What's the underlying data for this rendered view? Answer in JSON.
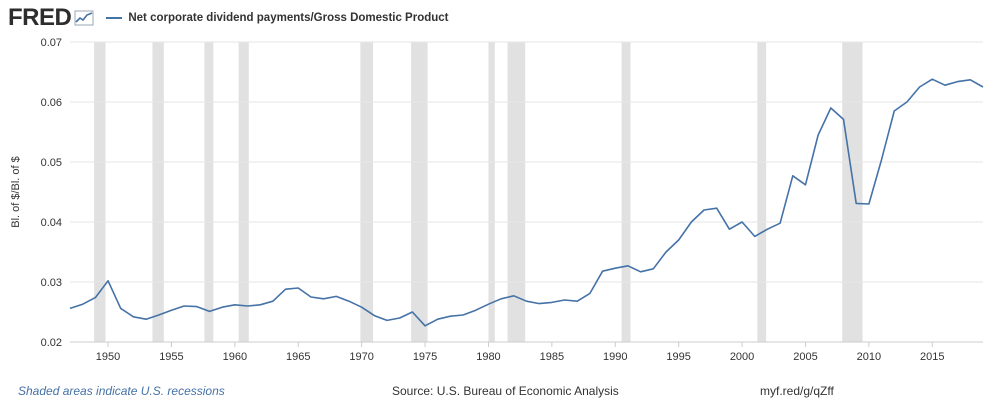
{
  "header": {
    "logo_text": "FRED",
    "logo_icon": "fred-chart-icon",
    "legend_series": "Net corporate dividend payments/Gross Domestic Product"
  },
  "footer": {
    "recessions_note": "Shaded areas indicate U.S. recessions",
    "source": "Source: U.S. Bureau of Economic Analysis",
    "short_url": "myf.red/g/qZff"
  },
  "colors": {
    "series": "#4572a7",
    "recession": "#e1e1e1",
    "grid": "#e6e6e6",
    "plot_bg": "#ffffff"
  },
  "chart_data": {
    "type": "line",
    "ylabel": "Bl. of $/Bl. of $",
    "xlabel": "",
    "ylim": [
      0.02,
      0.07
    ],
    "xlim": [
      1947,
      2019
    ],
    "y_ticks": [
      "0.02",
      "0.03",
      "0.04",
      "0.05",
      "0.06",
      "0.07"
    ],
    "x_ticks": [
      "1950",
      "1955",
      "1960",
      "1965",
      "1970",
      "1975",
      "1980",
      "1985",
      "1990",
      "1995",
      "2000",
      "2005",
      "2010",
      "2015"
    ],
    "grid": true,
    "recessions": [
      [
        1948.9,
        1949.8
      ],
      [
        1953.5,
        1954.4
      ],
      [
        1957.6,
        1958.3
      ],
      [
        1960.3,
        1961.1
      ],
      [
        1969.9,
        1970.9
      ],
      [
        1973.9,
        1975.2
      ],
      [
        1980.0,
        1980.5
      ],
      [
        1981.5,
        1982.9
      ],
      [
        1990.5,
        1991.2
      ],
      [
        2001.2,
        2001.9
      ],
      [
        2007.9,
        2009.5
      ]
    ],
    "series": [
      {
        "name": "Net corporate dividend payments/Gross Domestic Product",
        "x": [
          1947,
          1948,
          1949,
          1950,
          1951,
          1952,
          1953,
          1954,
          1955,
          1956,
          1957,
          1958,
          1959,
          1960,
          1961,
          1962,
          1963,
          1964,
          1965,
          1966,
          1967,
          1968,
          1969,
          1970,
          1971,
          1972,
          1973,
          1974,
          1975,
          1976,
          1977,
          1978,
          1979,
          1980,
          1981,
          1982,
          1983,
          1984,
          1985,
          1986,
          1987,
          1988,
          1989,
          1990,
          1991,
          1992,
          1993,
          1994,
          1995,
          1996,
          1997,
          1998,
          1999,
          2000,
          2001,
          2002,
          2003,
          2004,
          2005,
          2006,
          2007,
          2008,
          2009,
          2010,
          2011,
          2012,
          2013,
          2014,
          2015,
          2016,
          2017,
          2018,
          2019
        ],
        "values": [
          0.0256,
          0.0263,
          0.0274,
          0.0302,
          0.0256,
          0.0242,
          0.0238,
          0.0245,
          0.0253,
          0.026,
          0.0259,
          0.0251,
          0.0258,
          0.0262,
          0.026,
          0.0262,
          0.0268,
          0.0288,
          0.029,
          0.0275,
          0.0272,
          0.0276,
          0.0268,
          0.0258,
          0.0244,
          0.0236,
          0.024,
          0.025,
          0.0227,
          0.0238,
          0.0243,
          0.0245,
          0.0253,
          0.0263,
          0.0272,
          0.0277,
          0.0268,
          0.0264,
          0.0266,
          0.027,
          0.0268,
          0.0281,
          0.0318,
          0.0323,
          0.0327,
          0.0317,
          0.0322,
          0.035,
          0.037,
          0.04,
          0.042,
          0.0423,
          0.0388,
          0.04,
          0.0376,
          0.0388,
          0.0398,
          0.0477,
          0.0462,
          0.0545,
          0.059,
          0.0571,
          0.0431,
          0.043,
          0.0504,
          0.0585,
          0.06,
          0.0625,
          0.0638,
          0.0628,
          0.0634,
          0.0637,
          0.0625
        ]
      }
    ]
  }
}
